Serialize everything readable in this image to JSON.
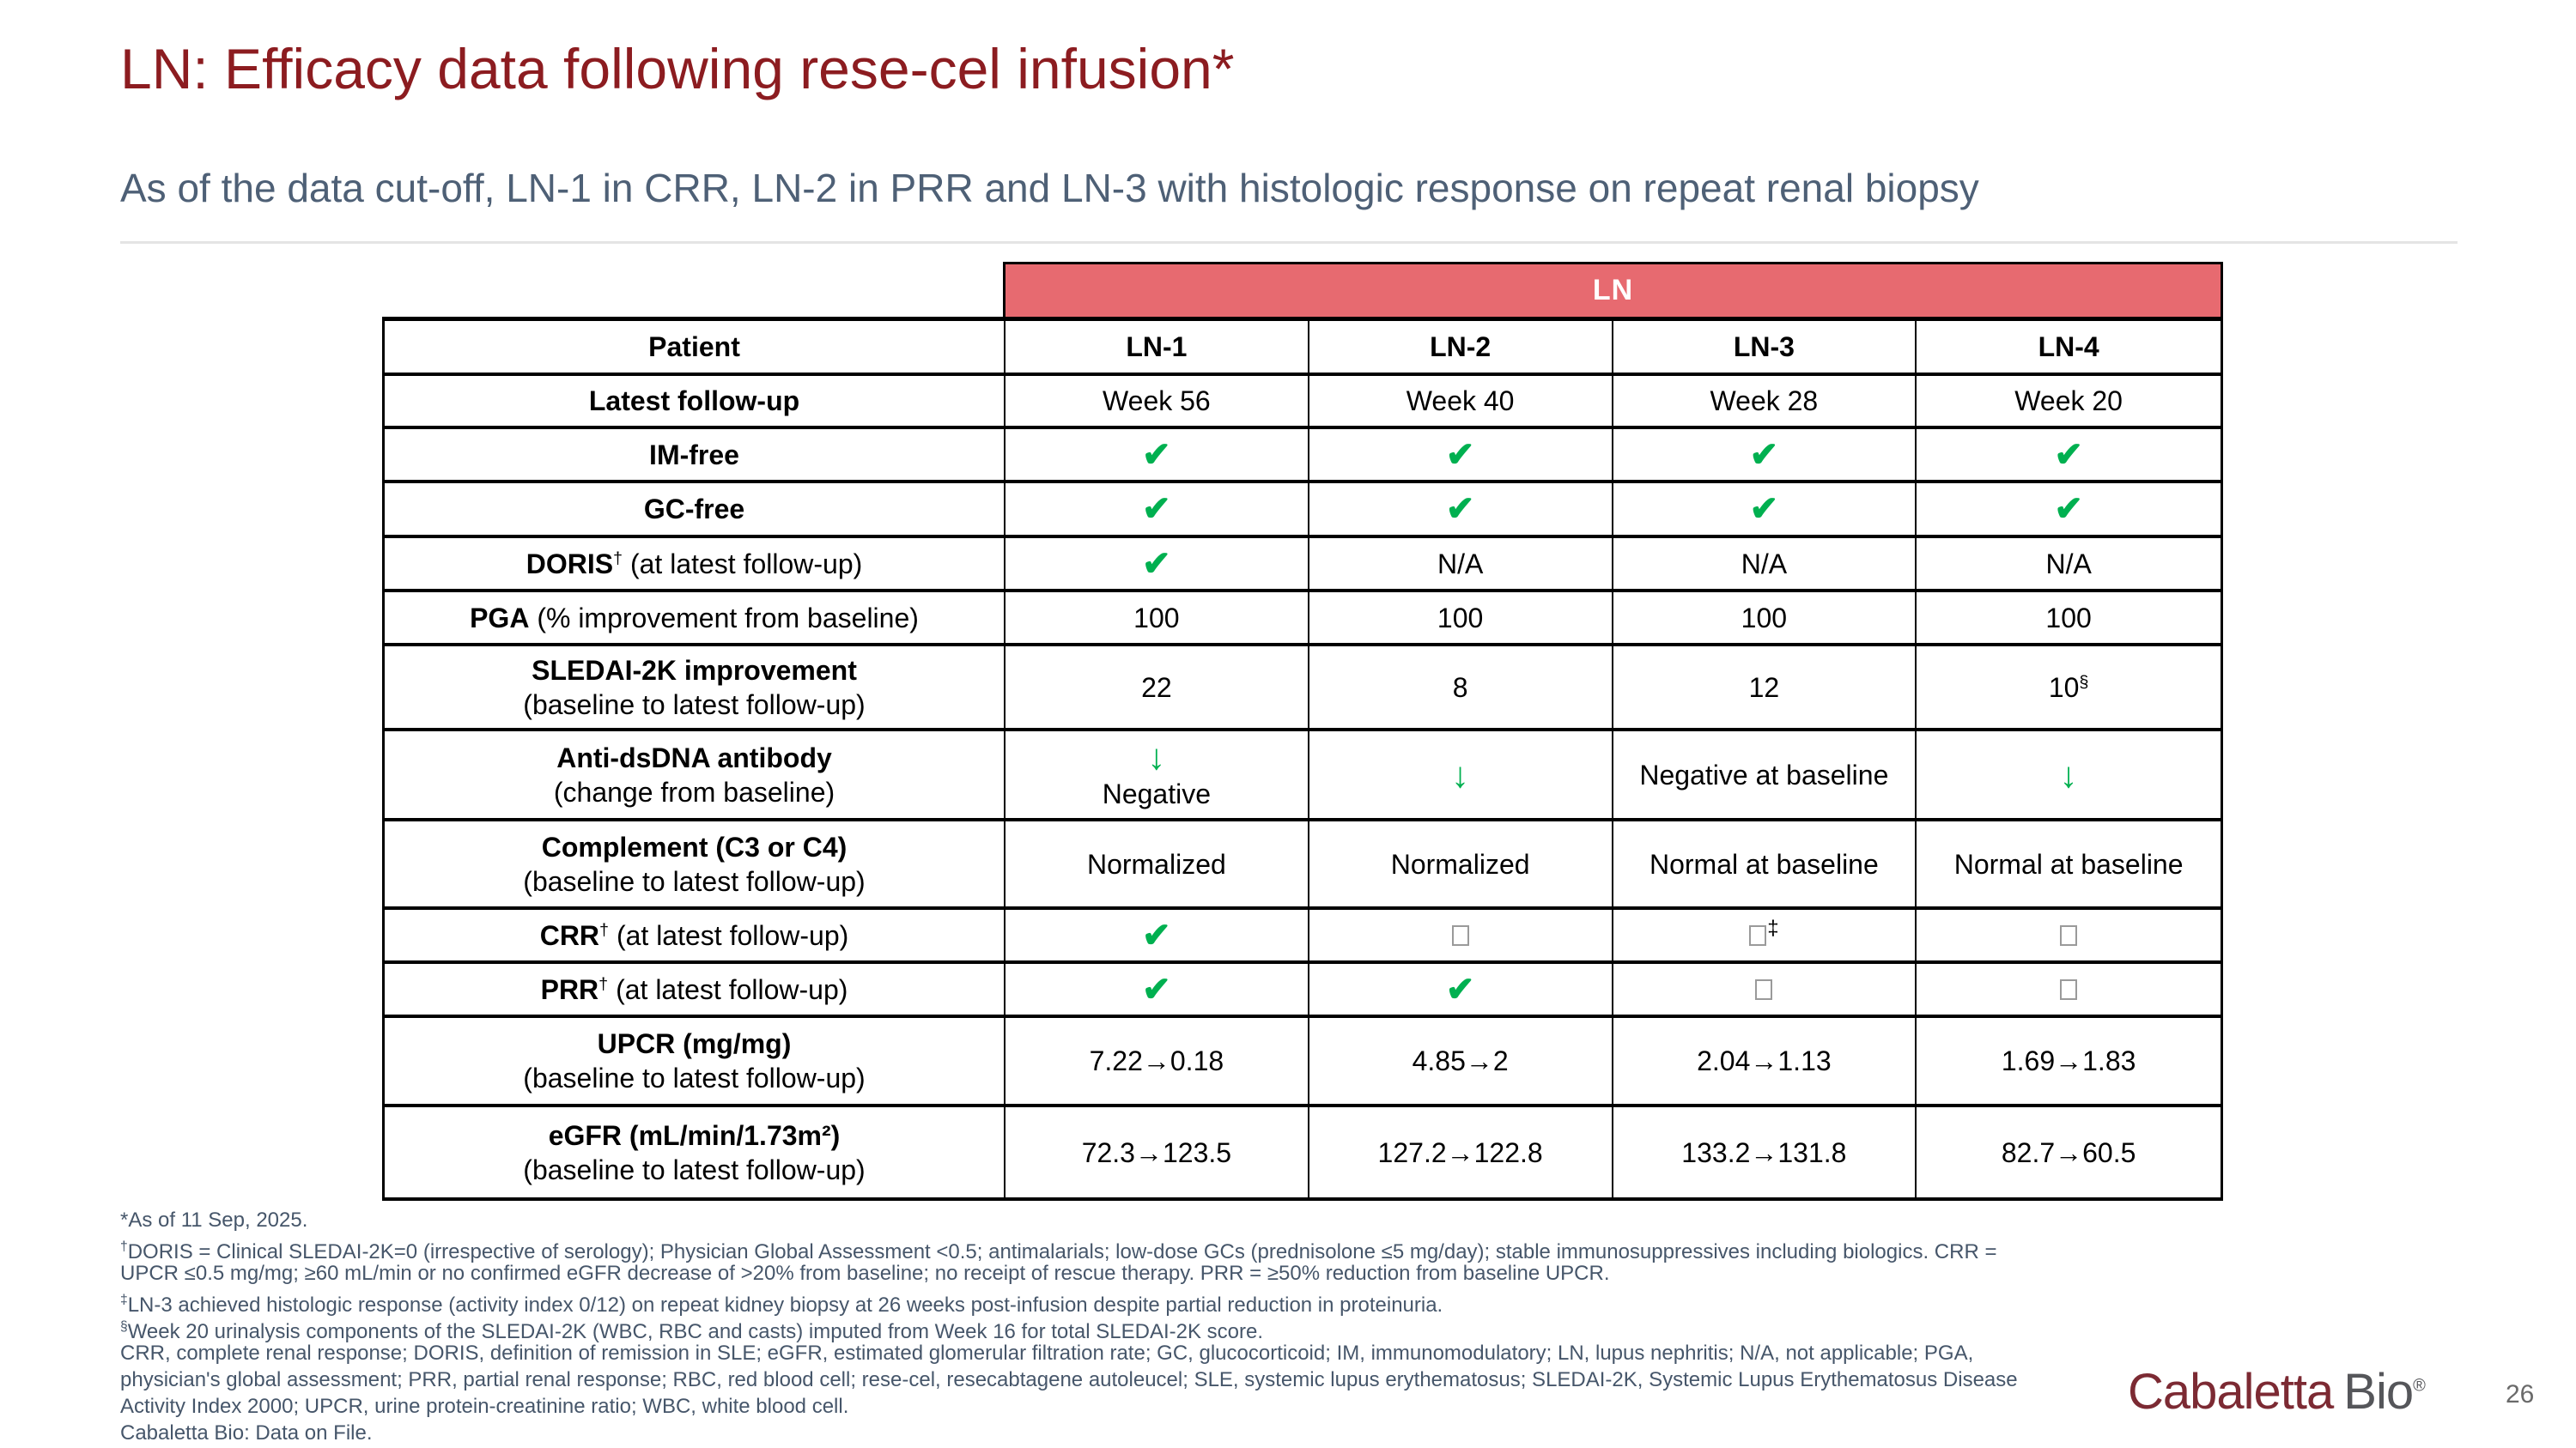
{
  "slide": {
    "title": "LN: Efficacy data following rese-cel infusion*",
    "subtitle": "As of the data cut-off, LN-1 in CRR, LN-2 in PRR and LN-3 with histologic response on repeat renal biopsy",
    "page_number": "26",
    "logo": {
      "part1": "Cabaletta",
      "part2": "Bio",
      "registered": "®"
    }
  },
  "colors": {
    "title_maroon": "#8C1C20",
    "subtitle_slate": "#4E6076",
    "banner_red": "#E76A70",
    "check_green": "#00B050",
    "footnote_slate": "#46566A",
    "logo_maroon": "#7C2A33",
    "logo_gray": "#55565A"
  },
  "chart_data": {
    "type": "table",
    "title": "LN",
    "columns": [
      "LN-1",
      "LN-2",
      "LN-3",
      "LN-4"
    ],
    "row_labels": [
      "Patient",
      "Latest follow-up",
      "IM-free",
      "GC-free",
      "DORIS† (at latest follow-up)",
      "PGA (% improvement from baseline)",
      "SLEDAI-2K improvement (baseline to latest follow-up)",
      "Anti-dsDNA antibody (change from baseline)",
      "Complement (C3 or C4) (baseline to latest follow-up)",
      "CRR† (at latest follow-up)",
      "PRR† (at latest follow-up)",
      "UPCR (mg/mg) (baseline to latest follow-up)",
      "eGFR (mL/min/1.73m²) (baseline to latest follow-up)"
    ]
  },
  "table": {
    "group_header": "LN",
    "rows": [
      {
        "label": {
          "bold": "Patient",
          "sup": "",
          "rest": "",
          "sub": ""
        },
        "header": true,
        "cells": [
          {
            "t": "text",
            "text": "LN-1"
          },
          {
            "t": "text",
            "text": "LN-2"
          },
          {
            "t": "text",
            "text": "LN-3"
          },
          {
            "t": "text",
            "text": "LN-4"
          }
        ]
      },
      {
        "label": {
          "bold": "Latest follow-up",
          "sup": "",
          "rest": "",
          "sub": ""
        },
        "cells": [
          {
            "t": "text",
            "text": "Week 56"
          },
          {
            "t": "text",
            "text": "Week 40"
          },
          {
            "t": "text",
            "text": "Week 28"
          },
          {
            "t": "text",
            "text": "Week 20"
          }
        ]
      },
      {
        "label": {
          "bold": "IM-free",
          "sup": "",
          "rest": "",
          "sub": ""
        },
        "cells": [
          {
            "t": "check"
          },
          {
            "t": "check"
          },
          {
            "t": "check"
          },
          {
            "t": "check"
          }
        ]
      },
      {
        "label": {
          "bold": "GC-free",
          "sup": "",
          "rest": "",
          "sub": ""
        },
        "cells": [
          {
            "t": "check"
          },
          {
            "t": "check"
          },
          {
            "t": "check"
          },
          {
            "t": "check"
          }
        ]
      },
      {
        "label": {
          "bold": "DORIS",
          "sup": "†",
          "rest": " (at latest follow-up)",
          "sub": ""
        },
        "cells": [
          {
            "t": "check"
          },
          {
            "t": "text",
            "text": "N/A"
          },
          {
            "t": "text",
            "text": "N/A"
          },
          {
            "t": "text",
            "text": "N/A"
          }
        ]
      },
      {
        "label": {
          "bold": "PGA",
          "sup": "",
          "rest": " (% improvement from baseline)",
          "sub": ""
        },
        "cells": [
          {
            "t": "text",
            "text": "100"
          },
          {
            "t": "text",
            "text": "100"
          },
          {
            "t": "text",
            "text": "100"
          },
          {
            "t": "text",
            "text": "100"
          }
        ]
      },
      {
        "label": {
          "bold": "SLEDAI-2K improvement",
          "sup": "",
          "rest": "",
          "sub": "(baseline to latest follow-up)"
        },
        "cells": [
          {
            "t": "text",
            "text": "22"
          },
          {
            "t": "text",
            "text": "8"
          },
          {
            "t": "text",
            "text": "12"
          },
          {
            "t": "text",
            "text": "10",
            "sup": "§"
          }
        ]
      },
      {
        "label": {
          "bold": "Anti-dsDNA antibody",
          "sup": "",
          "rest": "",
          "sub": "(change from baseline)"
        },
        "cells": [
          {
            "t": "down",
            "text": "Negative"
          },
          {
            "t": "down"
          },
          {
            "t": "text",
            "text": "Negative at baseline"
          },
          {
            "t": "down"
          }
        ]
      },
      {
        "label": {
          "bold": "Complement (C3 or C4)",
          "sup": "",
          "rest": "",
          "sub": "(baseline to latest follow-up)"
        },
        "cells": [
          {
            "t": "text",
            "text": "Normalized"
          },
          {
            "t": "text",
            "text": "Normalized"
          },
          {
            "t": "text",
            "text": "Normal at baseline"
          },
          {
            "t": "text",
            "text": "Normal at baseline"
          }
        ]
      },
      {
        "label": {
          "bold": "CRR",
          "sup": "†",
          "rest": " (at latest follow-up)",
          "sub": ""
        },
        "cells": [
          {
            "t": "check"
          },
          {
            "t": "box"
          },
          {
            "t": "box",
            "sup": "‡"
          },
          {
            "t": "box"
          }
        ]
      },
      {
        "label": {
          "bold": "PRR",
          "sup": "†",
          "rest": " (at latest follow-up)",
          "sub": ""
        },
        "cells": [
          {
            "t": "check"
          },
          {
            "t": "check"
          },
          {
            "t": "box"
          },
          {
            "t": "box"
          }
        ]
      },
      {
        "label": {
          "bold": "UPCR (mg/mg)",
          "sup": "",
          "rest": "",
          "sub": "(baseline to latest follow-up)"
        },
        "cells": [
          {
            "t": "text",
            "text": "7.22→0.18"
          },
          {
            "t": "text",
            "text": "4.85→2"
          },
          {
            "t": "text",
            "text": "2.04→1.13"
          },
          {
            "t": "text",
            "text": "1.69→1.83"
          }
        ]
      },
      {
        "label": {
          "bold": "eGFR (mL/min/1.73m²)",
          "sup": "",
          "rest": "",
          "sub": "(baseline to latest follow-up)"
        },
        "cells": [
          {
            "t": "text",
            "text": "72.3→123.5"
          },
          {
            "t": "text",
            "text": "127.2→122.8"
          },
          {
            "t": "text",
            "text": "133.2→131.8"
          },
          {
            "t": "text",
            "text": "82.7→60.5"
          }
        ]
      }
    ]
  },
  "footnotes": [
    {
      "sup": "",
      "text": "*As of 11 Sep, 2025."
    },
    {
      "sup": "†",
      "text": "DORIS = Clinical SLEDAI-2K=0 (irrespective of serology); Physician Global Assessment <0.5; antimalarials; low-dose GCs (prednisolone ≤5 mg/day); stable immunosuppressives including biologics. CRR ="
    },
    {
      "sup": "",
      "text": "UPCR ≤0.5 mg/mg; ≥60 mL/min or no confirmed eGFR decrease of >20% from baseline; no receipt of rescue therapy. PRR = ≥50% reduction from baseline UPCR."
    },
    {
      "sup": "‡",
      "text": "LN-3 achieved histologic response (activity index 0/12) on repeat kidney biopsy at 26 weeks post-infusion despite partial reduction in proteinuria."
    },
    {
      "sup": "§",
      "text": "Week 20 urinalysis components of the SLEDAI-2K (WBC, RBC and casts) imputed from Week 16 for total SLEDAI-2K score."
    },
    {
      "sup": "",
      "text": "CRR, complete renal response; DORIS, definition of remission in SLE; eGFR, estimated glomerular filtration rate; GC, glucocorticoid; IM, immunomodulatory; LN, lupus nephritis; N/A, not applicable; PGA,"
    },
    {
      "sup": "",
      "text": "physician's global assessment; PRR, partial renal response; RBC, red blood cell; rese-cel, resecabtagene autoleucel; SLE, systemic lupus erythematosus; SLEDAI-2K, Systemic Lupus Erythematosus Disease"
    },
    {
      "sup": "",
      "text": "Activity Index 2000; UPCR, urine protein-creatinine ratio; WBC, white blood cell."
    },
    {
      "sup": "",
      "text": "Cabaletta Bio: Data on File."
    }
  ]
}
